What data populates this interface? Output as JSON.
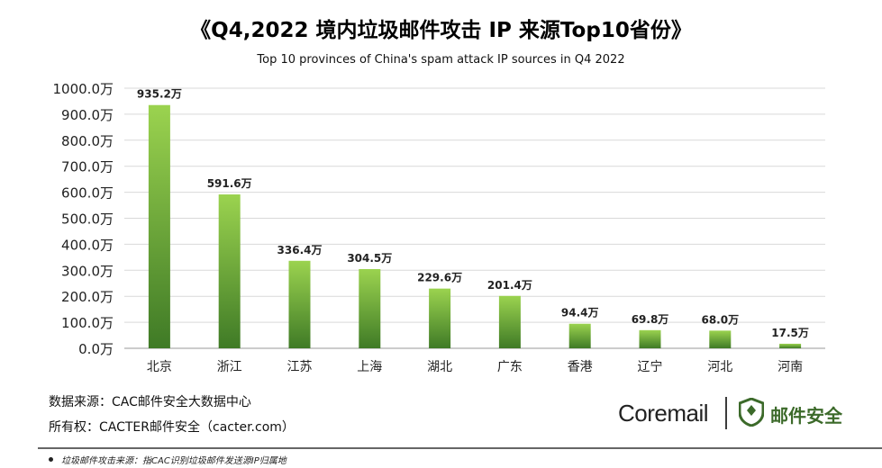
{
  "chart_data": {
    "type": "bar",
    "title": "《Q4,2022 境内垃圾邮件攻击 IP 来源Top10省份》",
    "subtitle": "Top 10 provinces of China's spam attack IP sources in Q4 2022",
    "categories": [
      "北京",
      "浙江",
      "江苏",
      "上海",
      "湖北",
      "广东",
      "香港",
      "辽宁",
      "河北",
      "河南"
    ],
    "values": [
      935.2,
      591.6,
      336.4,
      304.5,
      229.6,
      201.4,
      94.4,
      69.8,
      68.0,
      17.5
    ],
    "value_labels": [
      "935.2万",
      "591.6万",
      "336.4万",
      "304.5万",
      "229.6万",
      "201.4万",
      "94.4万",
      "69.8万",
      "68.0万",
      "17.5万"
    ],
    "y_ticks": [
      "0.0万",
      "100.0万",
      "200.0万",
      "300.0万",
      "400.0万",
      "500.0万",
      "600.0万",
      "700.0万",
      "800.0万",
      "900.0万",
      "1000.0万"
    ],
    "ylim": [
      0,
      1000
    ],
    "grid": true,
    "bar_color_top": "#9bd34f",
    "bar_color_bottom": "#3f7a26"
  },
  "source": {
    "data_source": "数据来源：CAC邮件安全大数据中心",
    "copyright": "所有权：CACTER邮件安全（cacter.com）"
  },
  "brand": {
    "coremail": "Coremail",
    "mail_security": "邮件安全",
    "accent": "#3c6a2a"
  },
  "footnote": "垃圾邮件攻击来源：指CAC识别垃圾邮件发送源IP归属地"
}
